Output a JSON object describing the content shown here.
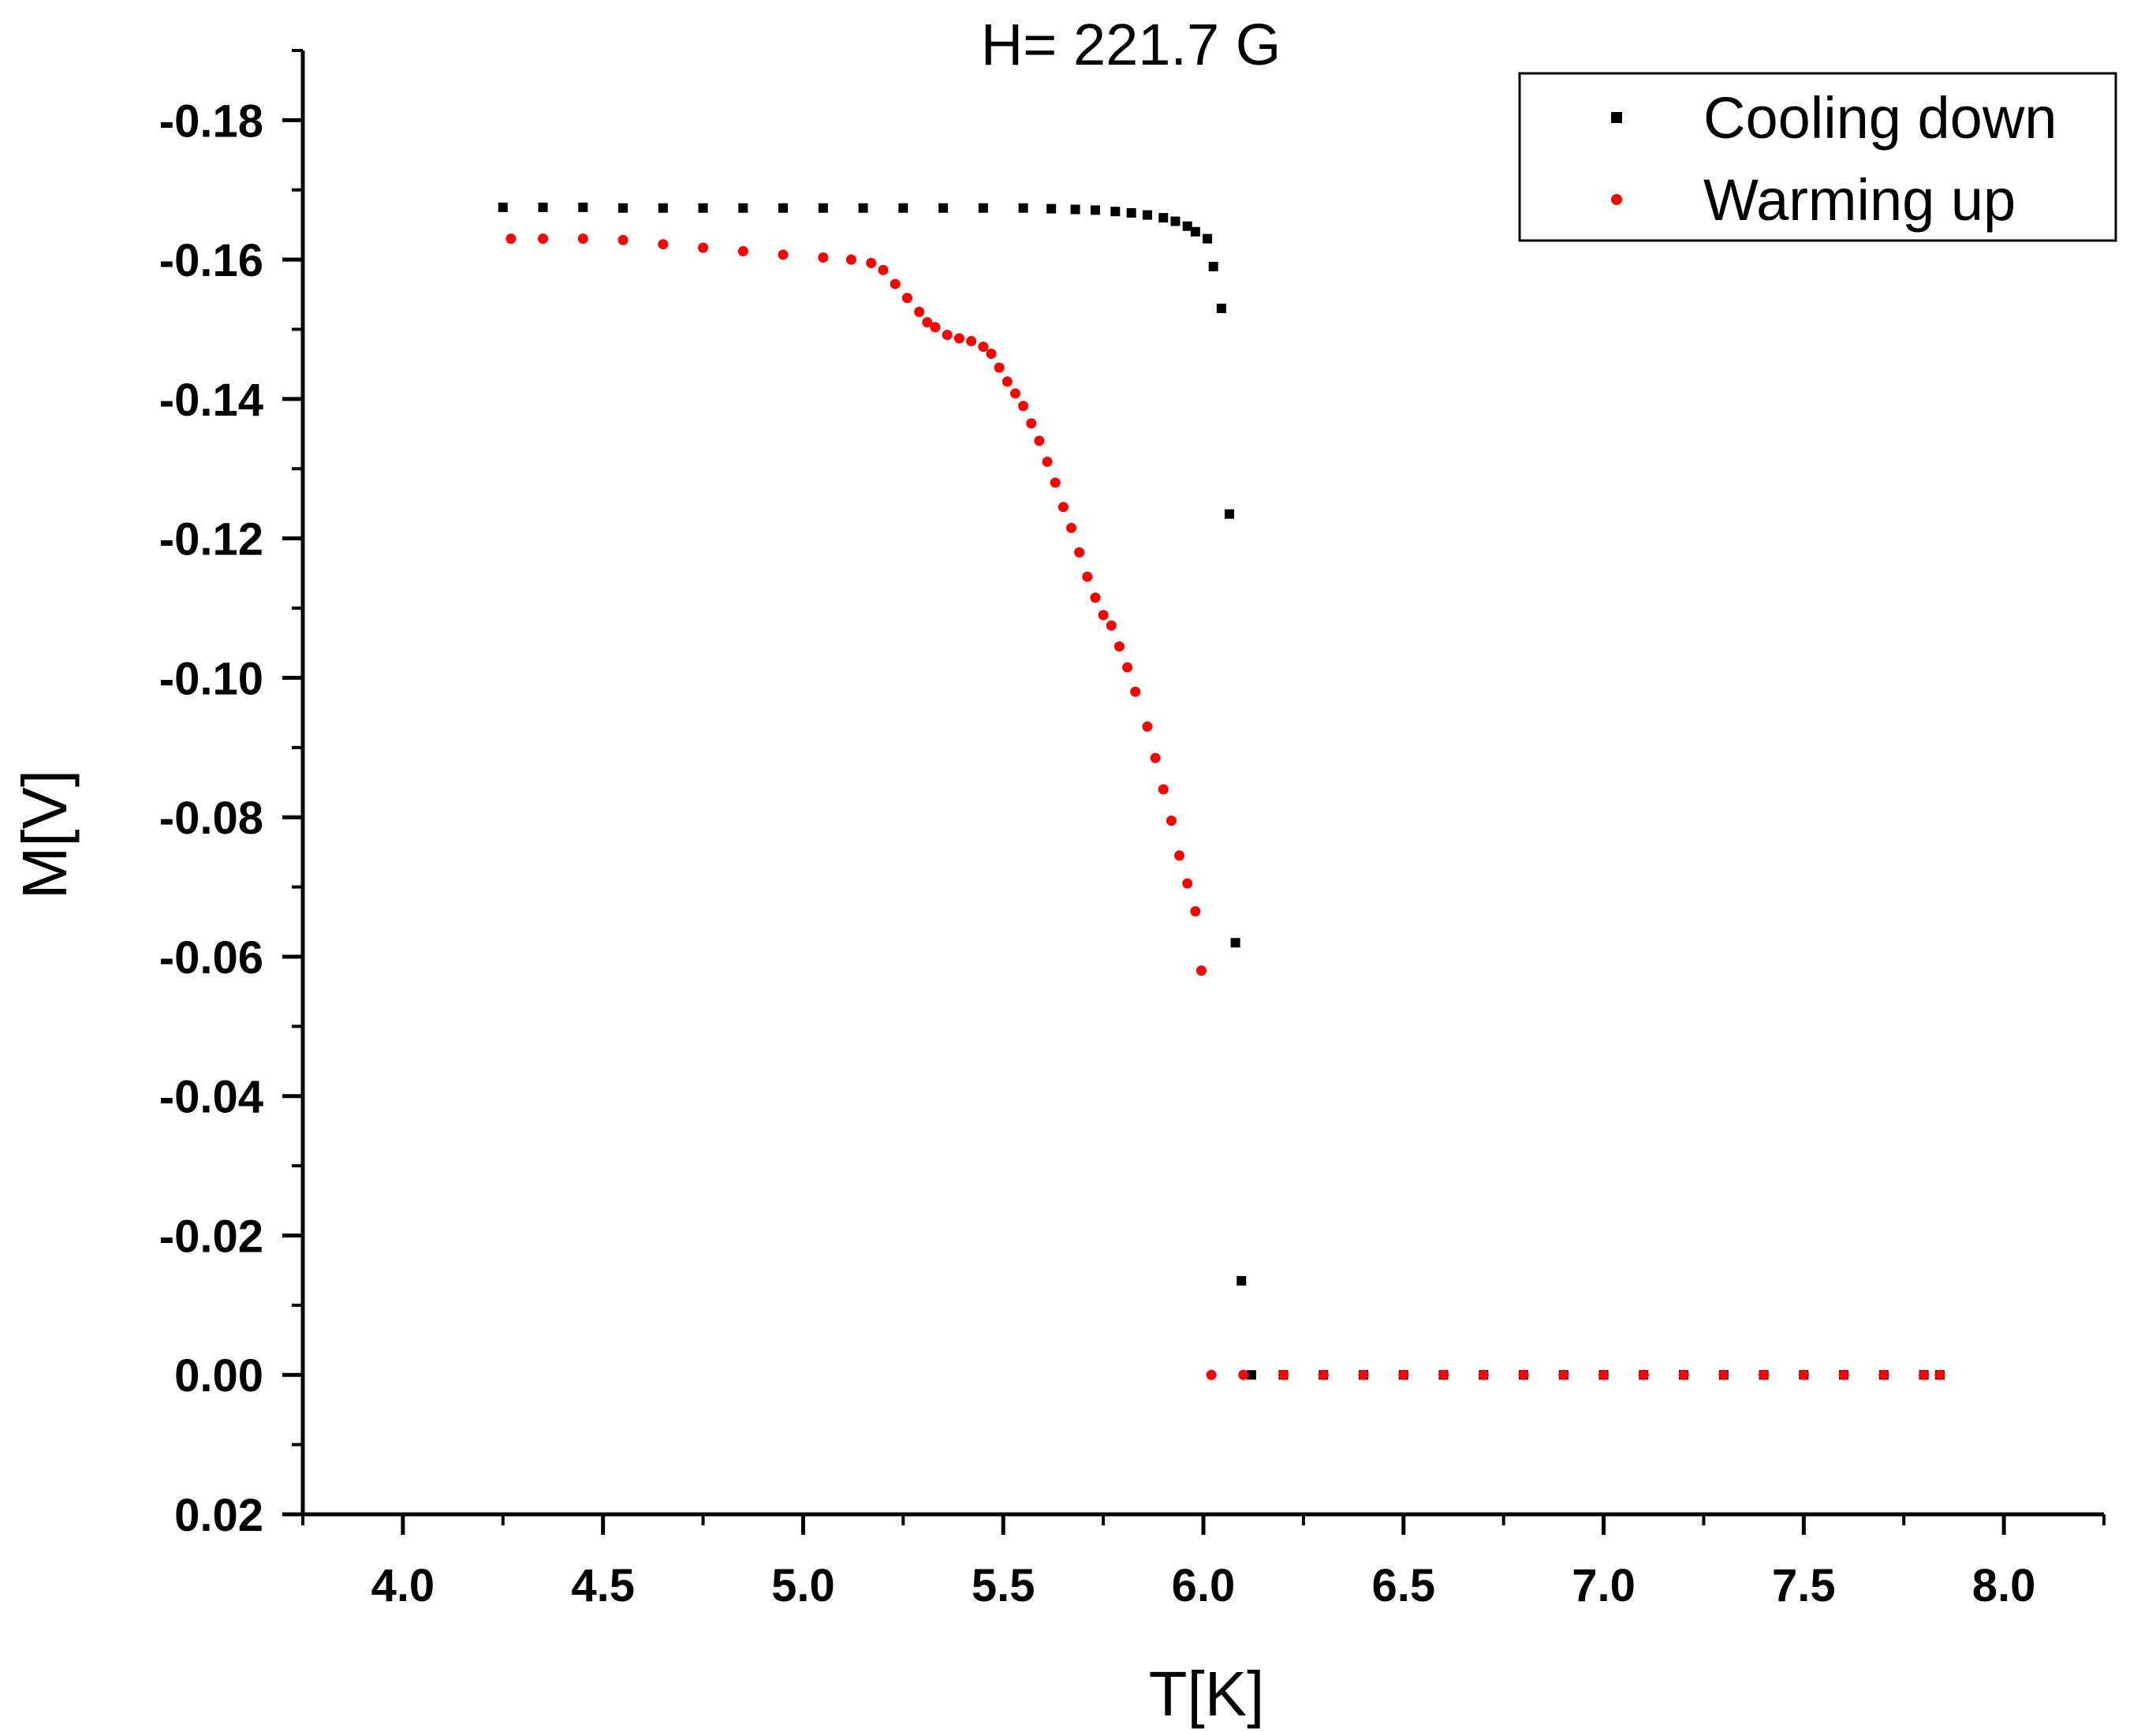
{
  "chart_data": {
    "type": "scatter",
    "title": "H= 221.7 G",
    "xlabel": "T[K]",
    "ylabel": "M[V]",
    "xlim": [
      3.75,
      8.25
    ],
    "ylim": [
      0.02,
      -0.19
    ],
    "y_axis_inverted": true,
    "x_ticks": [
      4.0,
      4.5,
      5.0,
      5.5,
      6.0,
      6.5,
      7.0,
      7.5,
      8.0
    ],
    "x_tick_labels": [
      "4.0",
      "4.5",
      "5.0",
      "5.5",
      "6.0",
      "6.5",
      "7.0",
      "7.5",
      "8.0"
    ],
    "y_ticks": [
      -0.18,
      -0.16,
      -0.14,
      -0.12,
      -0.1,
      -0.08,
      -0.06,
      -0.04,
      -0.02,
      0.0,
      0.02
    ],
    "y_tick_labels": [
      "-0.18",
      "-0.16",
      "-0.14",
      "-0.12",
      "-0.10",
      "-0.08",
      "-0.06",
      "-0.04",
      "-0.02",
      "0.00",
      "0.02"
    ],
    "grid": false,
    "legend_position": "top-right",
    "series": [
      {
        "name": "Cooling down",
        "color": "#000000",
        "marker": "square",
        "x": [
          4.25,
          4.35,
          4.45,
          4.55,
          4.65,
          4.75,
          4.85,
          4.95,
          5.05,
          5.15,
          5.25,
          5.35,
          5.45,
          5.55,
          5.62,
          5.68,
          5.73,
          5.78,
          5.82,
          5.86,
          5.9,
          5.93,
          5.96,
          5.98,
          6.01,
          6.025,
          6.045,
          6.065,
          6.08,
          6.095,
          6.12,
          6.2,
          6.3,
          6.4,
          6.5,
          6.6,
          6.7,
          6.8,
          6.9,
          7.0,
          7.1,
          7.2,
          7.3,
          7.4,
          7.5,
          7.6,
          7.7,
          7.8,
          7.84
        ],
        "y": [
          -0.1675,
          -0.1675,
          -0.1675,
          -0.1674,
          -0.1674,
          -0.1674,
          -0.1674,
          -0.1674,
          -0.1674,
          -0.1674,
          -0.1674,
          -0.1674,
          -0.1674,
          -0.1674,
          -0.1673,
          -0.1672,
          -0.1671,
          -0.1669,
          -0.1667,
          -0.1664,
          -0.166,
          -0.1655,
          -0.1648,
          -0.164,
          -0.163,
          -0.159,
          -0.153,
          -0.1235,
          -0.062,
          -0.0135,
          0.0,
          0.0,
          0.0,
          0.0,
          0.0,
          0.0,
          0.0,
          0.0,
          0.0,
          0.0,
          0.0,
          0.0,
          0.0,
          0.0,
          0.0,
          0.0,
          0.0,
          0.0,
          0.0
        ]
      },
      {
        "name": "Warming up",
        "color": "#ff0000",
        "marker": "circle",
        "x": [
          4.27,
          4.35,
          4.45,
          4.55,
          4.65,
          4.75,
          4.85,
          4.95,
          5.05,
          5.12,
          5.17,
          5.2,
          5.23,
          5.26,
          5.29,
          5.31,
          5.33,
          5.36,
          5.39,
          5.42,
          5.45,
          5.47,
          5.49,
          5.51,
          5.53,
          5.55,
          5.57,
          5.59,
          5.61,
          5.63,
          5.65,
          5.67,
          5.69,
          5.71,
          5.73,
          5.75,
          5.77,
          5.79,
          5.81,
          5.83,
          5.86,
          5.88,
          5.9,
          5.92,
          5.94,
          5.96,
          5.98,
          5.995,
          6.02,
          6.1,
          6.2,
          6.3,
          6.4,
          6.5,
          6.6,
          6.7,
          6.8,
          6.9,
          7.0,
          7.1,
          7.2,
          7.3,
          7.4,
          7.5,
          7.6,
          7.7,
          7.8,
          7.84
        ],
        "y": [
          -0.163,
          -0.163,
          -0.163,
          -0.1628,
          -0.1622,
          -0.1617,
          -0.1612,
          -0.1607,
          -0.1603,
          -0.16,
          -0.1595,
          -0.1585,
          -0.1565,
          -0.1545,
          -0.1525,
          -0.151,
          -0.1503,
          -0.1492,
          -0.1487,
          -0.1483,
          -0.1475,
          -0.1465,
          -0.1445,
          -0.1425,
          -0.1408,
          -0.139,
          -0.1365,
          -0.134,
          -0.131,
          -0.128,
          -0.1245,
          -0.1215,
          -0.118,
          -0.1145,
          -0.1115,
          -0.109,
          -0.1075,
          -0.1045,
          -0.1015,
          -0.098,
          -0.093,
          -0.0885,
          -0.084,
          -0.0795,
          -0.0745,
          -0.0705,
          -0.0665,
          -0.058,
          0.0,
          0.0,
          0.0,
          0.0,
          0.0,
          0.0,
          0.0,
          0.0,
          0.0,
          0.0,
          0.0,
          0.0,
          0.0,
          0.0,
          0.0,
          0.0,
          0.0,
          0.0,
          0.0,
          0.0
        ]
      }
    ]
  }
}
